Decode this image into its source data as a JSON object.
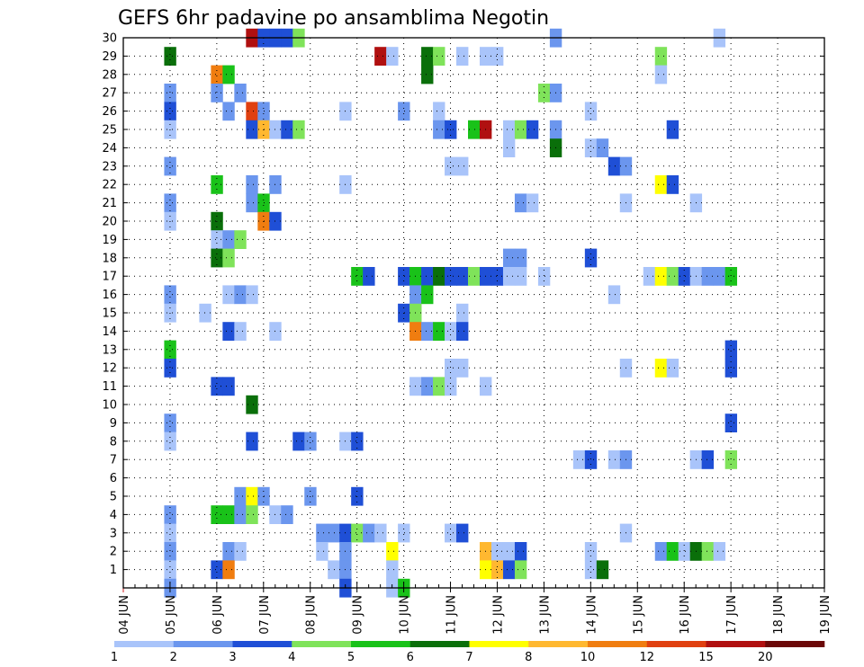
{
  "chart_data": {
    "type": "heatmap",
    "title": "GEFS 6hr padavine po ansamblima Negotin",
    "xlabel": "",
    "ylabel": "",
    "x_tick_labels": [
      "04 JUN",
      "05 JUN",
      "06 JUN",
      "07 JUN",
      "08 JUN",
      "09 JUN",
      "10 JUN",
      "11 JUN",
      "12 JUN",
      "13 JUN",
      "14 JUN",
      "15 JUN",
      "16 JUN",
      "17 JUN",
      "18 JUN",
      "19 JUN"
    ],
    "y_tick_labels": [
      "1",
      "2",
      "3",
      "4",
      "5",
      "6",
      "7",
      "8",
      "9",
      "10",
      "11",
      "12",
      "13",
      "14",
      "15",
      "16",
      "17",
      "18",
      "19",
      "20",
      "21",
      "22",
      "23",
      "24",
      "25",
      "26",
      "27",
      "28",
      "29",
      "30"
    ],
    "x_range": [
      "04 JUN 00Z",
      "19 JUN 00Z"
    ],
    "y_range": [
      0,
      30
    ],
    "grid": true,
    "colorbar": {
      "labels": [
        "1",
        "2",
        "3",
        "4",
        "5",
        "6",
        "7",
        "8",
        "10",
        "12",
        "15",
        "20"
      ],
      "colors": [
        "#a9c4fa",
        "#6b96ee",
        "#1f4fd6",
        "#7fe35a",
        "#19c219",
        "#0a6f0a",
        "#ffff00",
        "#ffb830",
        "#f07d10",
        "#e04010",
        "#b01010",
        "#6b0808"
      ]
    },
    "series": [
      {
        "member": 30,
        "cells": [
          [
            11,
            11
          ],
          [
            12,
            3
          ],
          [
            13,
            3
          ],
          [
            14,
            3
          ],
          [
            15,
            4
          ],
          [
            37,
            2
          ],
          [
            51,
            1
          ]
        ]
      },
      {
        "member": 29,
        "cells": [
          [
            4,
            6
          ],
          [
            22,
            11
          ],
          [
            23,
            1
          ],
          [
            26,
            6
          ],
          [
            27,
            4
          ],
          [
            29,
            1
          ],
          [
            31,
            1
          ],
          [
            32,
            1
          ],
          [
            46,
            4
          ]
        ]
      },
      {
        "member": 28,
        "cells": [
          [
            8,
            9
          ],
          [
            9,
            5
          ],
          [
            26,
            6
          ],
          [
            46,
            1
          ]
        ]
      },
      {
        "member": 27,
        "cells": [
          [
            4,
            2
          ],
          [
            8,
            2
          ],
          [
            10,
            2
          ],
          [
            36,
            4
          ],
          [
            37,
            2
          ]
        ]
      },
      {
        "member": 26,
        "cells": [
          [
            4,
            3
          ],
          [
            9,
            2
          ],
          [
            11,
            10
          ],
          [
            12,
            2
          ],
          [
            19,
            1
          ],
          [
            24,
            2
          ],
          [
            27,
            1
          ],
          [
            40,
            1
          ]
        ]
      },
      {
        "member": 25,
        "cells": [
          [
            4,
            1
          ],
          [
            11,
            3
          ],
          [
            12,
            8
          ],
          [
            13,
            1
          ],
          [
            14,
            3
          ],
          [
            15,
            4
          ],
          [
            27,
            2
          ],
          [
            28,
            3
          ],
          [
            30,
            5
          ],
          [
            31,
            11
          ],
          [
            33,
            1
          ],
          [
            34,
            4
          ],
          [
            35,
            3
          ],
          [
            37,
            2
          ],
          [
            47,
            3
          ]
        ]
      },
      {
        "member": 24,
        "cells": [
          [
            33,
            1
          ],
          [
            37,
            6
          ],
          [
            40,
            1
          ],
          [
            41,
            2
          ]
        ]
      },
      {
        "member": 23,
        "cells": [
          [
            4,
            2
          ],
          [
            28,
            1
          ],
          [
            29,
            1
          ],
          [
            42,
            3
          ],
          [
            43,
            2
          ]
        ]
      },
      {
        "member": 22,
        "cells": [
          [
            8,
            5
          ],
          [
            11,
            2
          ],
          [
            13,
            2
          ],
          [
            19,
            1
          ],
          [
            46,
            7
          ],
          [
            47,
            3
          ]
        ]
      },
      {
        "member": 21,
        "cells": [
          [
            4,
            2
          ],
          [
            11,
            2
          ],
          [
            12,
            5
          ],
          [
            34,
            2
          ],
          [
            35,
            1
          ],
          [
            43,
            1
          ],
          [
            49,
            1
          ]
        ]
      },
      {
        "member": 20,
        "cells": [
          [
            4,
            1
          ],
          [
            8,
            6
          ],
          [
            12,
            9
          ],
          [
            13,
            3
          ]
        ]
      },
      {
        "member": 19,
        "cells": [
          [
            8,
            1
          ],
          [
            9,
            2
          ],
          [
            10,
            4
          ]
        ]
      },
      {
        "member": 18,
        "cells": [
          [
            8,
            6
          ],
          [
            9,
            4
          ],
          [
            33,
            2
          ],
          [
            34,
            2
          ],
          [
            40,
            3
          ]
        ]
      },
      {
        "member": 17,
        "cells": [
          [
            20,
            5
          ],
          [
            21,
            3
          ],
          [
            24,
            3
          ],
          [
            25,
            5
          ],
          [
            26,
            3
          ],
          [
            27,
            6
          ],
          [
            28,
            3
          ],
          [
            29,
            3
          ],
          [
            30,
            4
          ],
          [
            31,
            3
          ],
          [
            32,
            3
          ],
          [
            33,
            1
          ],
          [
            34,
            1
          ],
          [
            36,
            1
          ],
          [
            45,
            1
          ],
          [
            46,
            7
          ],
          [
            47,
            4
          ],
          [
            48,
            3
          ],
          [
            49,
            1
          ],
          [
            50,
            2
          ],
          [
            51,
            2
          ],
          [
            52,
            5
          ]
        ]
      },
      {
        "member": 16,
        "cells": [
          [
            4,
            2
          ],
          [
            9,
            1
          ],
          [
            10,
            2
          ],
          [
            11,
            1
          ],
          [
            25,
            2
          ],
          [
            26,
            5
          ],
          [
            42,
            1
          ]
        ]
      },
      {
        "member": 15,
        "cells": [
          [
            4,
            1
          ],
          [
            7,
            1
          ],
          [
            24,
            3
          ],
          [
            25,
            4
          ],
          [
            29,
            1
          ]
        ]
      },
      {
        "member": 14,
        "cells": [
          [
            9,
            3
          ],
          [
            10,
            1
          ],
          [
            13,
            1
          ],
          [
            25,
            9
          ],
          [
            26,
            2
          ],
          [
            27,
            5
          ],
          [
            28,
            1
          ],
          [
            29,
            3
          ]
        ]
      },
      {
        "member": 13,
        "cells": [
          [
            4,
            5
          ],
          [
            52,
            3
          ]
        ]
      },
      {
        "member": 12,
        "cells": [
          [
            4,
            3
          ],
          [
            28,
            1
          ],
          [
            29,
            1
          ],
          [
            43,
            1
          ],
          [
            46,
            7
          ],
          [
            47,
            1
          ],
          [
            52,
            3
          ]
        ]
      },
      {
        "member": 11,
        "cells": [
          [
            8,
            3
          ],
          [
            9,
            3
          ],
          [
            25,
            1
          ],
          [
            26,
            2
          ],
          [
            27,
            4
          ],
          [
            28,
            1
          ],
          [
            31,
            1
          ]
        ]
      },
      {
        "member": 10,
        "cells": [
          [
            11,
            6
          ]
        ]
      },
      {
        "member": 9,
        "cells": [
          [
            4,
            2
          ],
          [
            52,
            3
          ]
        ]
      },
      {
        "member": 8,
        "cells": [
          [
            4,
            1
          ],
          [
            11,
            3
          ],
          [
            15,
            3
          ],
          [
            16,
            2
          ],
          [
            19,
            1
          ],
          [
            20,
            3
          ]
        ]
      },
      {
        "member": 7,
        "cells": [
          [
            39,
            1
          ],
          [
            40,
            3
          ],
          [
            42,
            1
          ],
          [
            43,
            2
          ],
          [
            49,
            1
          ],
          [
            50,
            3
          ],
          [
            52,
            4
          ]
        ]
      },
      {
        "member": 6,
        "cells": []
      },
      {
        "member": 5,
        "cells": [
          [
            10,
            2
          ],
          [
            11,
            7
          ],
          [
            12,
            2
          ],
          [
            16,
            2
          ],
          [
            20,
            3
          ]
        ]
      },
      {
        "member": 4,
        "cells": [
          [
            4,
            2
          ],
          [
            8,
            5
          ],
          [
            9,
            5
          ],
          [
            10,
            2
          ],
          [
            11,
            4
          ],
          [
            13,
            1
          ],
          [
            14,
            2
          ]
        ]
      },
      {
        "member": 3,
        "cells": [
          [
            4,
            1
          ],
          [
            17,
            2
          ],
          [
            18,
            2
          ],
          [
            19,
            3
          ],
          [
            20,
            4
          ],
          [
            21,
            2
          ],
          [
            22,
            1
          ],
          [
            24,
            1
          ],
          [
            28,
            1
          ],
          [
            29,
            3
          ],
          [
            43,
            1
          ]
        ]
      },
      {
        "member": 2,
        "cells": [
          [
            4,
            2
          ],
          [
            9,
            2
          ],
          [
            10,
            1
          ],
          [
            17,
            1
          ],
          [
            19,
            2
          ],
          [
            23,
            7
          ],
          [
            31,
            8
          ],
          [
            32,
            1
          ],
          [
            33,
            1
          ],
          [
            34,
            3
          ],
          [
            40,
            1
          ],
          [
            46,
            2
          ],
          [
            47,
            5
          ],
          [
            48,
            1
          ],
          [
            49,
            6
          ],
          [
            50,
            4
          ],
          [
            51,
            1
          ]
        ]
      },
      {
        "member": 1,
        "cells": [
          [
            4,
            1
          ],
          [
            8,
            3
          ],
          [
            9,
            9
          ],
          [
            18,
            1
          ],
          [
            19,
            2
          ],
          [
            23,
            1
          ],
          [
            31,
            7
          ],
          [
            32,
            8
          ],
          [
            33,
            3
          ],
          [
            34,
            4
          ],
          [
            40,
            1
          ],
          [
            41,
            6
          ]
        ]
      },
      {
        "member": 0,
        "cells": [
          [
            4,
            2
          ],
          [
            19,
            3
          ],
          [
            23,
            1
          ],
          [
            24,
            5
          ]
        ]
      }
    ]
  }
}
